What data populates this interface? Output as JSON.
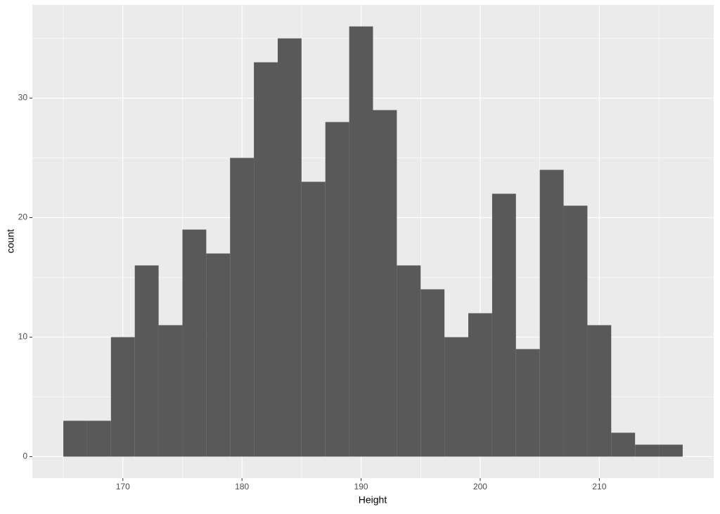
{
  "chart_data": {
    "type": "histogram",
    "x_label": "Height",
    "y_label": "count",
    "bins": [
      165,
      167,
      169,
      171,
      173,
      175,
      177,
      179,
      181,
      183,
      185,
      187,
      189,
      191,
      193,
      195,
      197,
      199,
      201,
      203,
      205,
      207,
      209,
      211,
      213,
      215,
      217
    ],
    "counts": [
      3,
      3,
      10,
      16,
      11,
      19,
      17,
      25,
      33,
      35,
      23,
      28,
      36,
      29,
      16,
      14,
      10,
      12,
      22,
      9,
      24,
      21,
      11,
      2,
      1,
      1
    ],
    "color": "#595959",
    "xlim": [
      162.4,
      219.6
    ],
    "xticks": [
      170,
      180,
      190,
      200,
      210
    ],
    "ylim": [
      -1.8,
      37.8
    ],
    "yticks": [
      0,
      10,
      20,
      30
    ],
    "grid": true
  }
}
